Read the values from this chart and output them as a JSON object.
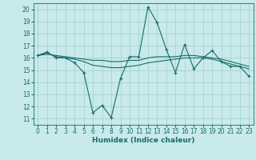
{
  "xlabel": "Humidex (Indice chaleur)",
  "bg_color": "#c8eaea",
  "grid_color": "#a8d0d0",
  "line_color": "#1a6b6b",
  "xlim": [
    -0.5,
    23.5
  ],
  "ylim": [
    10.5,
    20.5
  ],
  "yticks": [
    11,
    12,
    13,
    14,
    15,
    16,
    17,
    18,
    19,
    20
  ],
  "xticks": [
    0,
    1,
    2,
    3,
    4,
    5,
    6,
    7,
    8,
    9,
    10,
    11,
    12,
    13,
    14,
    15,
    16,
    17,
    18,
    19,
    20,
    21,
    22,
    23
  ],
  "line1_x": [
    0,
    1,
    2,
    3,
    4,
    5,
    6,
    7,
    8,
    9,
    10,
    11,
    12,
    13,
    14,
    15,
    16,
    17,
    18,
    19,
    20,
    21,
    22,
    23
  ],
  "line1_y": [
    16.2,
    16.5,
    16.0,
    16.0,
    15.6,
    14.8,
    11.5,
    12.1,
    11.1,
    14.3,
    16.1,
    16.1,
    20.2,
    18.9,
    16.7,
    14.8,
    17.1,
    15.1,
    16.0,
    16.6,
    15.7,
    15.3,
    15.3,
    14.5
  ],
  "line2_x": [
    0,
    1,
    2,
    3,
    4,
    5,
    6,
    7,
    8,
    9,
    10,
    11,
    12,
    13,
    14,
    15,
    16,
    17,
    18,
    19,
    20,
    21,
    22,
    23
  ],
  "line2_y": [
    16.2,
    16.4,
    16.1,
    16.0,
    15.9,
    15.7,
    15.4,
    15.3,
    15.2,
    15.2,
    15.3,
    15.4,
    15.6,
    15.7,
    15.8,
    15.9,
    16.0,
    16.0,
    16.0,
    15.9,
    15.7,
    15.5,
    15.3,
    15.1
  ],
  "line3_x": [
    0,
    1,
    2,
    3,
    4,
    5,
    6,
    7,
    8,
    9,
    10,
    11,
    12,
    13,
    14,
    15,
    16,
    17,
    18,
    19,
    20,
    21,
    22,
    23
  ],
  "line3_y": [
    16.2,
    16.3,
    16.2,
    16.1,
    16.0,
    15.9,
    15.8,
    15.8,
    15.7,
    15.7,
    15.8,
    15.8,
    16.0,
    16.1,
    16.1,
    16.1,
    16.2,
    16.2,
    16.1,
    16.0,
    15.9,
    15.7,
    15.5,
    15.3
  ],
  "ylabel_fontsize": 5.5,
  "xlabel_fontsize": 6.5,
  "tick_fontsize": 5.5
}
